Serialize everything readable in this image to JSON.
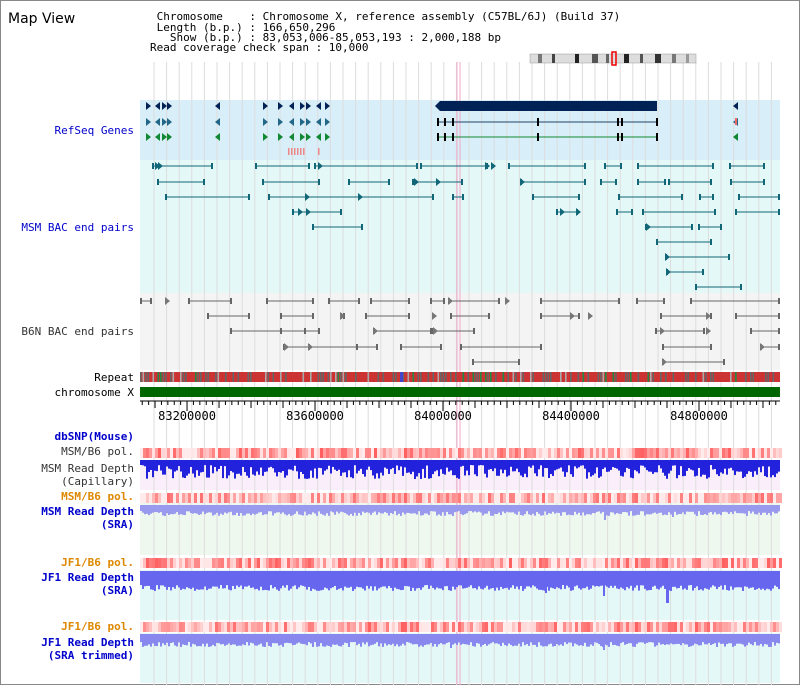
{
  "title": "Map View",
  "info": {
    "lines": [
      " Chromosome    : Chromosome X, reference assembly (C57BL/6J) (Build 37)",
      " Length (b.p.) : 166,650,296",
      "   Show (b.p.) : 83,053,006-85,053,193 : 2,000,188 bp",
      "Read coverage check span : 10,000"
    ]
  },
  "axis": {
    "start_bp": 83053006,
    "end_bp": 85053193,
    "ticks": [
      {
        "bp": 83200000,
        "label": "83200000"
      },
      {
        "bp": 83600000,
        "label": "83600000"
      },
      {
        "bp": 84000000,
        "label": "84000000"
      },
      {
        "bp": 84400000,
        "label": "84400000"
      },
      {
        "bp": 84800000,
        "label": "84800000"
      }
    ]
  },
  "tracks": {
    "refseq": "RefSeq Genes",
    "msm_bac": "MSM BAC end pairs",
    "b6n_bac": "B6N BAC end pairs",
    "repeat": "Repeat",
    "chromosome": "chromosome X",
    "dbsnp": "dbSNP(Mouse)",
    "msm_b6_pol_cap": "MSM/B6 pol.",
    "msm_depth_cap_1": "MSM Read Depth",
    "msm_depth_cap_2": "(Capillary)",
    "msm_b6_pol_sra": "MSM/B6 pol.",
    "msm_depth_sra_1": "MSM Read Depth",
    "msm_depth_sra_2": "(SRA)",
    "jf1_b6_pol_sra": "JF1/B6 pol.",
    "jf1_depth_sra_1": "JF1 Read Depth",
    "jf1_depth_sra_2": "(SRA)",
    "jf1_b6_pol_trim": "JF1/B6 pol.",
    "jf1_depth_trim_1": "JF1 Read Depth",
    "jf1_depth_trim_2": "(SRA trimmed)"
  },
  "colors": {
    "blue_label": "#0000cc",
    "orange_label": "#dd8800",
    "gray_label": "#333333",
    "gene": "#006600",
    "gene_dark": "#002255",
    "bac_msm": "#116677",
    "bac_b6n": "#666666",
    "chromosome": "#006600",
    "depth": "#3333dd",
    "depth_light": "#8888ee"
  }
}
